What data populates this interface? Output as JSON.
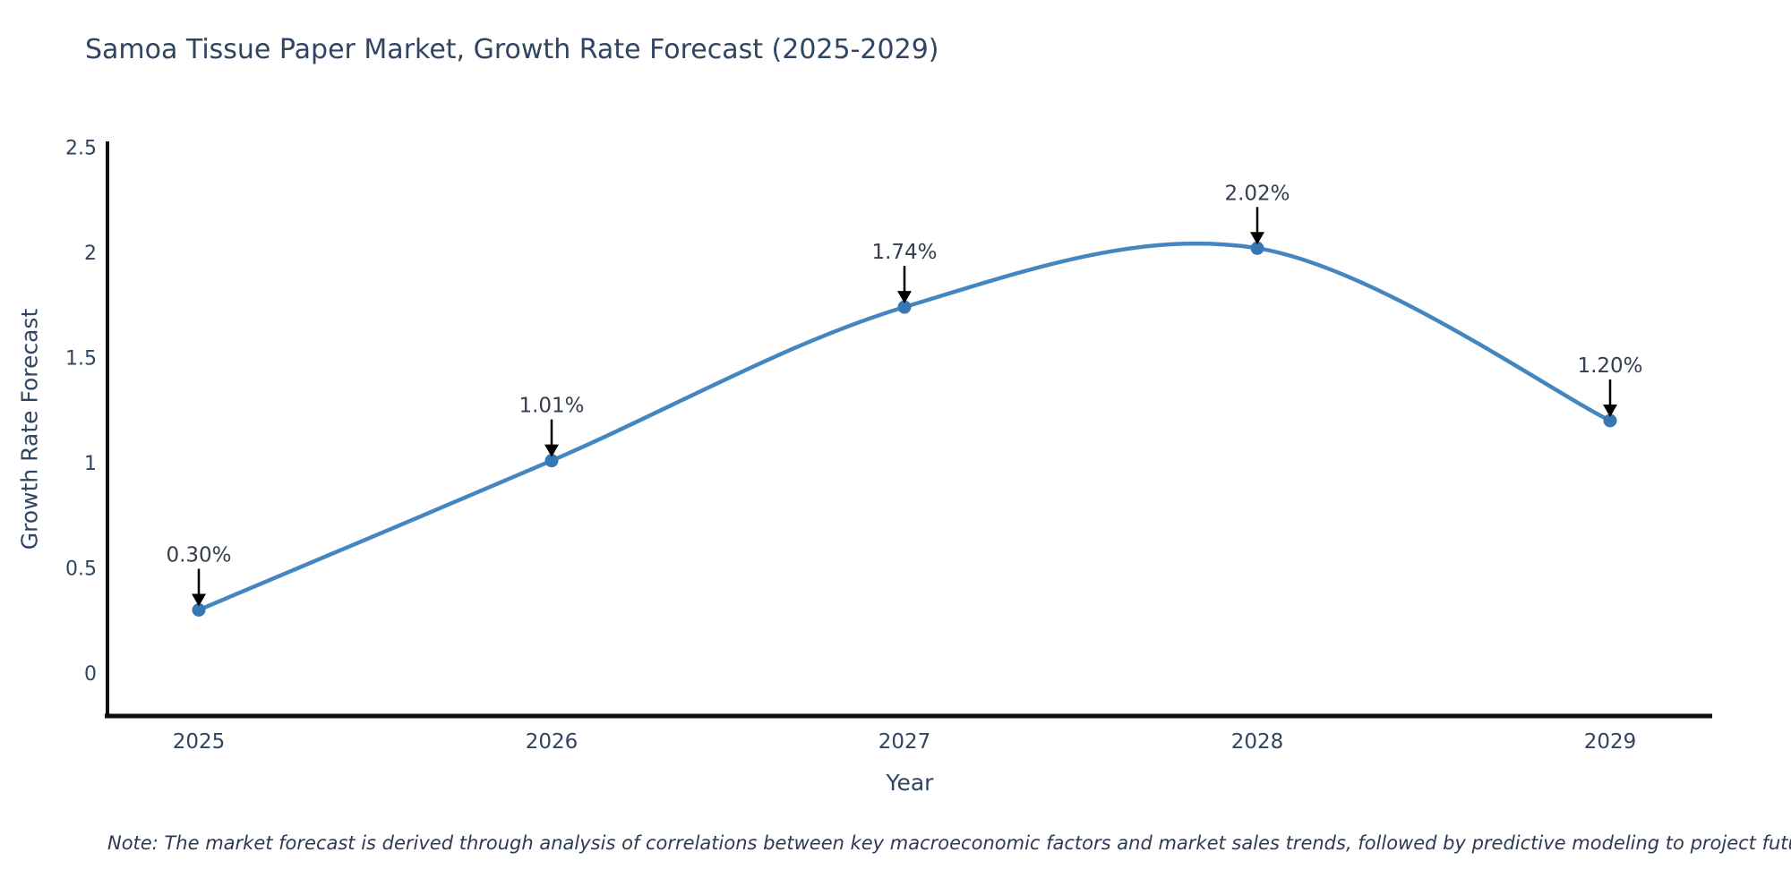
{
  "title": "Samoa Tissue Paper Market, Growth Rate Forecast (2025-2029)",
  "note": "Note: The market forecast is derived through analysis of correlations between key macroeconomic factors and market sales trends, followed by predictive modeling to project future sales",
  "chart_data": {
    "type": "line",
    "title": "Samoa Tissue Paper Market, Growth Rate Forecast (2025-2029)",
    "xlabel": "Year",
    "ylabel": "Growth Rate Forecast",
    "categories": [
      "2025",
      "2026",
      "2027",
      "2028",
      "2029"
    ],
    "values": [
      0.3,
      1.01,
      1.74,
      2.02,
      1.2
    ],
    "point_labels": [
      "0.30%",
      "1.01%",
      "1.74%",
      "2.02%",
      "1.20%"
    ],
    "yticks": [
      0,
      0.5,
      1,
      1.5,
      2,
      2.5
    ],
    "ytick_labels": [
      "0",
      "0.5",
      "1",
      "1.5",
      "2",
      "2.5"
    ],
    "ylim": [
      0,
      2.5
    ],
    "grid": false,
    "legend": "none",
    "line_shape": "spline",
    "line_color": "#4486c0",
    "marker_color": "#3678b4",
    "axis_color": "#0d0d0d",
    "text_color": "#2f4561",
    "annotation_color": "#343d4e",
    "arrow_color": "#000000"
  }
}
